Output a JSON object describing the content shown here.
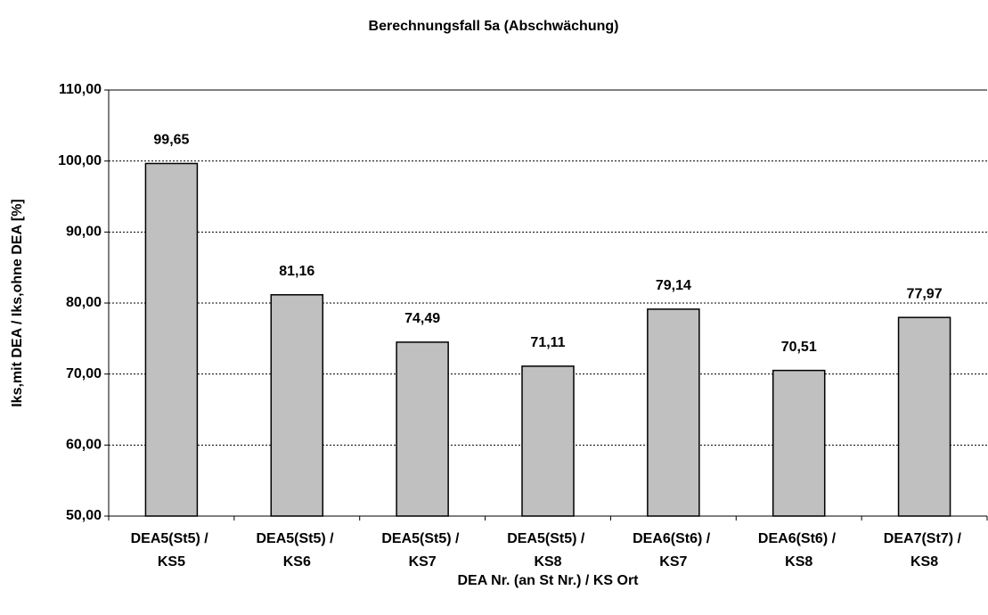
{
  "chart_data": {
    "type": "bar",
    "title": "Berechnungsfall 5a (Abschwächung)",
    "x_label": "DEA Nr. (an St Nr.) / KS Ort",
    "y_label": "Iks,mit DEA / Iks,ohne DEA [%]",
    "categories": [
      "DEA5(St5) / KS5",
      "DEA5(St5) / KS6",
      "DEA5(St5) / KS7",
      "DEA5(St5) / KS8",
      "DEA6(St6) / KS7",
      "DEA6(St6) / KS8",
      "DEA7(St7) / KS8"
    ],
    "values": [
      99.65,
      81.16,
      74.49,
      71.11,
      79.14,
      70.51,
      77.97
    ],
    "value_labels": [
      "99,65",
      "81,16",
      "74,49",
      "71,11",
      "79,14",
      "70,51",
      "77,97"
    ],
    "color": "#c0c0c0",
    "ylim": [
      50,
      110
    ],
    "yticks": [
      {
        "value": 50,
        "label": "50,00"
      },
      {
        "value": 60,
        "label": "60,00"
      },
      {
        "value": 70,
        "label": "70,00"
      },
      {
        "value": 80,
        "label": "80,00"
      },
      {
        "value": 90,
        "label": "90,00"
      },
      {
        "value": 100,
        "label": "100,00"
      },
      {
        "value": 110,
        "label": "110,00"
      }
    ],
    "grid": true
  }
}
